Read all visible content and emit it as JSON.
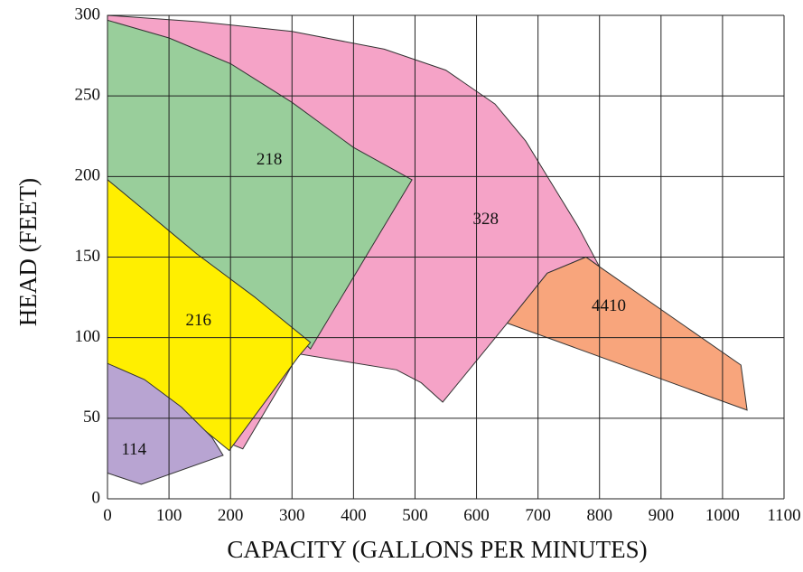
{
  "chart_data": {
    "type": "area",
    "xlabel": "CAPACITY (GALLONS PER MINUTES)",
    "ylabel": "HEAD (FEET)",
    "xlim": [
      0,
      1100
    ],
    "ylim": [
      0,
      300
    ],
    "xticks": [
      0,
      100,
      200,
      300,
      400,
      500,
      600,
      700,
      800,
      900,
      1000,
      1100
    ],
    "yticks": [
      0,
      50,
      100,
      150,
      200,
      250,
      300
    ],
    "grid": true,
    "series": [
      {
        "name": "328",
        "color": "#f5a3c7",
        "label_at": [
          615,
          173
        ],
        "points": [
          [
            0,
            300
          ],
          [
            150,
            296
          ],
          [
            300,
            290
          ],
          [
            450,
            279
          ],
          [
            550,
            266
          ],
          [
            630,
            245
          ],
          [
            680,
            222
          ],
          [
            720,
            197
          ],
          [
            765,
            169
          ],
          [
            800,
            144
          ],
          [
            778,
            150
          ],
          [
            715,
            140
          ],
          [
            650,
            109
          ],
          [
            545,
            60
          ],
          [
            510,
            72
          ],
          [
            470,
            80
          ],
          [
            310,
            90
          ],
          [
            290,
            76
          ],
          [
            220,
            31
          ],
          [
            175,
            38
          ],
          [
            80,
            48
          ],
          [
            0,
            200
          ]
        ]
      },
      {
        "name": "4410",
        "color": "#f8a57c",
        "label_at": [
          815,
          119
        ],
        "points": [
          [
            800,
            144
          ],
          [
            1030,
            83
          ],
          [
            1040,
            55
          ],
          [
            650,
            109
          ],
          [
            715,
            140
          ],
          [
            778,
            150
          ]
        ]
      },
      {
        "name": "218",
        "color": "#99ce9b",
        "label_at": [
          263,
          210
        ],
        "points": [
          [
            0,
            297
          ],
          [
            100,
            286
          ],
          [
            200,
            270
          ],
          [
            300,
            246
          ],
          [
            400,
            218
          ],
          [
            495,
            198
          ],
          [
            330,
            93
          ],
          [
            240,
            125
          ],
          [
            145,
            152
          ],
          [
            60,
            179
          ],
          [
            0,
            198
          ]
        ]
      },
      {
        "name": "216",
        "color": "#ffef00",
        "label_at": [
          148,
          110
        ],
        "points": [
          [
            0,
            198
          ],
          [
            60,
            179
          ],
          [
            145,
            152
          ],
          [
            240,
            125
          ],
          [
            330,
            97
          ],
          [
            310,
            88
          ],
          [
            198,
            30
          ],
          [
            150,
            45
          ],
          [
            80,
            62
          ],
          [
            0,
            84
          ]
        ]
      },
      {
        "name": "114",
        "color": "#b8a4d2",
        "label_at": [
          43,
          30
        ],
        "points": [
          [
            0,
            84
          ],
          [
            60,
            74
          ],
          [
            120,
            57
          ],
          [
            170,
            38
          ],
          [
            188,
            27
          ],
          [
            55,
            9
          ],
          [
            0,
            16
          ]
        ]
      }
    ]
  }
}
